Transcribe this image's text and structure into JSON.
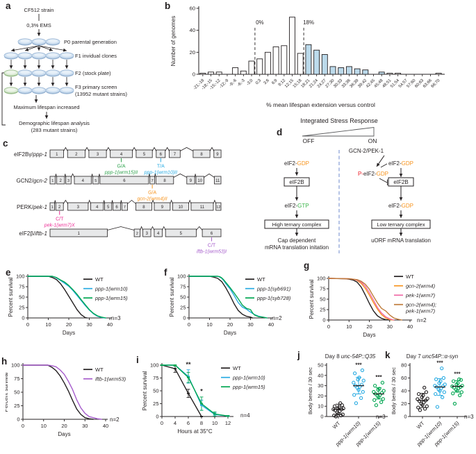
{
  "panel_labels": {
    "a": "a",
    "b": "b",
    "c": "c",
    "d": "d",
    "e": "e",
    "f": "f",
    "g": "g",
    "h": "h",
    "i": "i",
    "j": "j",
    "k": "k"
  },
  "panel_a": {
    "strain": "CF512 strain",
    "ems": "0,3% EMS",
    "p0": "P0 parental generation",
    "f1": "F1 invidual clones",
    "f2": "F2 (stock plate)",
    "f3_line1": "F3 primary screen",
    "f3_line2": "(13952 mutant strains)",
    "max": "Maximum lifespan increased",
    "demo_line1": "Demographic lifespan analysis",
    "demo_line2": "(283 mutant strains)",
    "plate_blue": "#CFE0F1",
    "plate_green": "#DCEBD5"
  },
  "panel_c": {
    "genes": [
      {
        "name_plain": "eIF2Bγ/",
        "name_italic": "ppp-1",
        "exons": [
          21,
          27,
          27,
          34,
          25,
          14,
          17,
          26,
          11
        ],
        "gaps": [
          6,
          6,
          6,
          6,
          6,
          6,
          20,
          6
        ],
        "mutations": [
          {
            "exon": 4,
            "change": "G/A",
            "allele": "ppp-1(wrm15)II",
            "color": "#2EA24D"
          },
          {
            "exon": 6,
            "change": "T/A",
            "allele": "ppp-1(wrm10)II",
            "color": "#29ABE2"
          }
        ]
      },
      {
        "name_plain": "GCN2/",
        "name_italic": "gcn-2",
        "exons": [
          8,
          12,
          8,
          26,
          9,
          74,
          7,
          27,
          12,
          12,
          10
        ],
        "gaps": [
          2,
          2,
          5,
          2,
          2,
          2,
          2,
          20,
          2,
          16
        ],
        "mutations": [
          {
            "exon": 7,
            "change": "G/A",
            "allele": "gcn-2(wrm4)II",
            "color": "#F7941E"
          }
        ]
      },
      {
        "name_plain": "PERK/",
        "name_italic": "pek-1",
        "exons": [
          7,
          12,
          32,
          20,
          11,
          12,
          9,
          25,
          25,
          25,
          35,
          8
        ],
        "gaps": [
          2,
          7,
          4,
          2,
          2,
          2,
          13,
          4,
          4,
          4,
          4
        ],
        "mutations": [
          {
            "exon": 2,
            "change": "C/T",
            "allele": "pek-1(wrm7)X",
            "color": "#EC2D95"
          }
        ]
      },
      {
        "name_plain": "eIF2β/",
        "name_italic": "iftb-1",
        "exons": [
          86,
          9,
          12,
          12,
          46,
          28
        ],
        "gaps": [
          40,
          4,
          5,
          5,
          9
        ],
        "mutations": [
          {
            "exon": 6,
            "change": "C/T",
            "allele": "iftb-1(wrm53)I",
            "color": "#A55BCB"
          }
        ]
      }
    ]
  },
  "panel_d": {
    "title": "Integrated Stress Response",
    "off": "OFF",
    "on": "ON",
    "kinases": "GCN-2/PEK-1",
    "eif2_gdp": [
      [
        "eIF2-",
        "#231F20"
      ],
      [
        "GDP",
        "#F7941E"
      ]
    ],
    "eif2_gtp": [
      [
        "eIF2-",
        "#231F20"
      ],
      [
        "GTP",
        "#3AB54A"
      ]
    ],
    "p_eif2_gdp": [
      [
        "P-",
        "#ED1C24"
      ],
      [
        "eIF2-",
        "#231F20"
      ],
      [
        "GDP",
        "#F7941E"
      ]
    ],
    "eif2b": "eIF2B",
    "high_box": "High ternary complex",
    "low_box": "Low ternary complex",
    "cap_line1": "Cap dependent",
    "cap_line2": "mRNA translation initation",
    "uorf": "uORF mRNA translation",
    "divider_color": "#7B93D1"
  },
  "chart_data": [
    {
      "id": "b",
      "type": "bar",
      "ylabel": "Number of genomes",
      "xlabel": "% mean lifespan extension versus control",
      "ylim": [
        0,
        60
      ],
      "yticks": [
        0,
        20,
        40,
        60
      ],
      "categories": [
        "-21;-18",
        "-18;-15",
        "-15;-12",
        "-12;-9",
        "-9;-6",
        "-6;-3",
        "-3;0",
        "0;3",
        "3;6",
        "6;9",
        "9;12",
        "12;15",
        "15;18",
        "18;21",
        "21;24",
        "24;27",
        "27;30",
        "30;33",
        "33;36",
        "36;39",
        "39;42",
        "42;45",
        "45;48",
        "48;51",
        "51;54",
        "54;57",
        "57;60",
        "60;63",
        "63;66",
        "66;70"
      ],
      "values": [
        1,
        2,
        2,
        0,
        6,
        3,
        12,
        14,
        20,
        25,
        26,
        52,
        19,
        27,
        22,
        18,
        7,
        6,
        7,
        5,
        4,
        0,
        2,
        1,
        1,
        0,
        0,
        0,
        0,
        1
      ],
      "highlight_range": [
        13,
        22
      ],
      "bar_fill": "#FFFFFF",
      "highlight_fill": "#BCDAEB",
      "annotations": [
        {
          "index": 7,
          "label": "0%"
        },
        {
          "index": 13,
          "label": "18%"
        }
      ]
    },
    {
      "id": "e",
      "type": "survival",
      "xlabel": "Days",
      "ylabel": "Percent survival",
      "xlim": [
        0,
        40
      ],
      "xticks": [
        0,
        10,
        20,
        30,
        40
      ],
      "yticks": [
        0,
        25,
        50,
        75,
        100
      ],
      "n_label": "n=3",
      "series": [
        {
          "name": "WT",
          "color": "#231F20",
          "x": [
            0,
            10,
            12,
            14,
            16,
            18,
            20,
            22,
            24,
            26,
            28,
            29
          ],
          "y": [
            100,
            100,
            97,
            92,
            82,
            68,
            52,
            36,
            20,
            8,
            1,
            0
          ]
        },
        {
          "name": "ppp-1(wrm10)",
          "italic": true,
          "color": "#29ABE2",
          "x": [
            0,
            12,
            14,
            16,
            18,
            20,
            22,
            24,
            26,
            28,
            30,
            32,
            34,
            36,
            38
          ],
          "y": [
            100,
            100,
            96,
            90,
            83,
            76,
            66,
            54,
            42,
            30,
            19,
            10,
            4,
            1,
            0
          ]
        },
        {
          "name": "ppp-1(wrm15)",
          "italic": true,
          "color": "#00A651",
          "x": [
            0,
            12,
            14,
            16,
            18,
            20,
            22,
            24,
            26,
            28,
            30,
            32,
            34,
            36,
            38
          ],
          "y": [
            100,
            100,
            97,
            91,
            86,
            78,
            68,
            57,
            44,
            32,
            20,
            11,
            5,
            2,
            0
          ]
        }
      ]
    },
    {
      "id": "f",
      "type": "survival",
      "xlabel": "Days",
      "ylabel": "Percent survival",
      "xlim": [
        0,
        40
      ],
      "xticks": [
        0,
        10,
        20,
        30,
        40
      ],
      "yticks": [
        0,
        25,
        50,
        75,
        100
      ],
      "n_label": "n=2",
      "series": [
        {
          "name": "WT",
          "color": "#231F20",
          "x": [
            0,
            10,
            12,
            14,
            16,
            18,
            20,
            22,
            24,
            26,
            28,
            30,
            31
          ],
          "y": [
            100,
            100,
            98,
            95,
            87,
            72,
            54,
            34,
            18,
            9,
            4,
            2,
            0
          ]
        },
        {
          "name": "ppp-1(syb691)",
          "italic": true,
          "color": "#29ABE2",
          "x": [
            0,
            14,
            15,
            16,
            17,
            18,
            20,
            22,
            24,
            26,
            28,
            30,
            32,
            34,
            36,
            38
          ],
          "y": [
            100,
            100,
            98,
            95,
            89,
            82,
            70,
            54,
            37,
            26,
            21,
            14,
            8,
            4,
            2,
            0
          ]
        },
        {
          "name": "ppp-1(syb728)",
          "italic": true,
          "color": "#00A651",
          "x": [
            0,
            14,
            15,
            16,
            17,
            18,
            20,
            22,
            24,
            26,
            28,
            30,
            31,
            32,
            34,
            36,
            38
          ],
          "y": [
            100,
            100,
            99,
            96,
            91,
            85,
            73,
            60,
            46,
            31,
            23,
            20,
            12,
            7,
            3,
            2,
            0
          ]
        }
      ]
    },
    {
      "id": "g",
      "type": "survival",
      "xlabel": "Days",
      "ylabel": "Percent survival",
      "xlim": [
        0,
        40
      ],
      "xticks": [
        0,
        10,
        20,
        30,
        40
      ],
      "yticks": [
        0,
        25,
        50,
        75,
        100
      ],
      "n_label": "n=2",
      "series": [
        {
          "name": "WT",
          "color": "#231F20",
          "x": [
            0,
            8,
            10,
            12,
            14,
            16,
            18,
            20,
            22,
            24,
            26,
            28,
            30
          ],
          "y": [
            100,
            99,
            98,
            96,
            91,
            79,
            60,
            40,
            22,
            10,
            4,
            1,
            0
          ]
        },
        {
          "name": "gcn-2(wrm4)",
          "italic": true,
          "color": "#F7941E",
          "x": [
            0,
            10,
            12,
            14,
            16,
            18,
            20,
            22,
            24,
            26,
            28,
            30,
            32
          ],
          "y": [
            100,
            99,
            98,
            95,
            88,
            76,
            60,
            42,
            26,
            13,
            5,
            1,
            0
          ]
        },
        {
          "name": "pek-1(wrm7)",
          "italic": true,
          "color": "#F06CA8",
          "x": [
            0,
            10,
            12,
            14,
            16,
            18,
            20,
            22,
            24,
            26,
            28,
            30,
            32
          ],
          "y": [
            100,
            99,
            98,
            96,
            91,
            81,
            66,
            48,
            30,
            17,
            8,
            3,
            0
          ]
        },
        {
          "name": "gcn-2(wrm4);",
          "name2": "pek-1(wrm7)",
          "italic": true,
          "color": "#BE7B3A",
          "x": [
            0,
            10,
            12,
            14,
            16,
            18,
            20,
            22,
            24,
            26,
            28,
            30,
            32,
            34,
            36
          ],
          "y": [
            100,
            99,
            98,
            97,
            93,
            86,
            74,
            57,
            41,
            28,
            22,
            12,
            5,
            2,
            0
          ]
        }
      ]
    },
    {
      "id": "h",
      "type": "survival",
      "xlabel": "Days",
      "ylabel": "Percent survival",
      "xlim": [
        0,
        40
      ],
      "xticks": [
        0,
        10,
        20,
        30,
        40
      ],
      "yticks": [
        0,
        25,
        50,
        75,
        100
      ],
      "n_label": "n=2",
      "series": [
        {
          "name": "WT",
          "color": "#231F20",
          "x": [
            0,
            12,
            14,
            16,
            18,
            20,
            22,
            24,
            26,
            28,
            30,
            32,
            34
          ],
          "y": [
            100,
            100,
            96,
            90,
            80,
            67,
            52,
            35,
            19,
            9,
            3,
            1,
            0
          ]
        },
        {
          "name": "iftb-1(wrm53)",
          "italic": true,
          "color": "#A55BCB",
          "x": [
            0,
            12,
            14,
            16,
            18,
            20,
            22,
            24,
            26,
            28,
            30,
            32,
            34,
            36,
            38
          ],
          "y": [
            100,
            100,
            99,
            97,
            91,
            83,
            70,
            55,
            36,
            21,
            11,
            5,
            3,
            1,
            0
          ]
        }
      ]
    },
    {
      "id": "i",
      "type": "survival_err",
      "xlabel": "Hours at 35°C",
      "ylabel": "Percent survival",
      "xcats": [
        0,
        4,
        6,
        8,
        10,
        12
      ],
      "yticks": [
        0,
        25,
        50,
        75,
        100
      ],
      "n_label": "n=4",
      "series": [
        {
          "name": "WT",
          "color": "#231F20",
          "y": [
            100,
            93,
            45,
            0,
            null,
            null
          ],
          "err": [
            0,
            7,
            8,
            0,
            0,
            0
          ]
        },
        {
          "name": "ppp-1(wrm10)",
          "italic": true,
          "color": "#29ABE2",
          "y": [
            100,
            100,
            78,
            22,
            4,
            1
          ],
          "err": [
            0,
            2,
            13,
            10,
            3,
            1
          ]
        },
        {
          "name": "ppp-1(wrm15)",
          "italic": true,
          "color": "#00A651",
          "y": [
            100,
            100,
            76,
            25,
            5,
            1
          ],
          "err": [
            0,
            2,
            10,
            13,
            4,
            1
          ]
        }
      ],
      "sig": [
        {
          "xi": 2,
          "yv": 97,
          "label": "**"
        },
        {
          "xi": 3,
          "yv": 45,
          "label": "*"
        }
      ]
    },
    {
      "id": "j",
      "type": "scatter",
      "title_plain": "Day 8 ",
      "title_italic": "unc-54P::Q35",
      "ylabel": "Body bends / 30 sec",
      "ylim": [
        0,
        50
      ],
      "yticks": [
        0,
        10,
        20,
        30,
        40,
        50
      ],
      "n_label": "n=3",
      "groups": [
        {
          "name": "WT",
          "color": "#231F20",
          "values": [
            0,
            1,
            1,
            2,
            3,
            4,
            5,
            6,
            7,
            7,
            8,
            8,
            9,
            10,
            11,
            13
          ],
          "mean": 7,
          "sd_low": 2,
          "sd_high": 12
        },
        {
          "name": "ppp-1(wrm10)",
          "italic": true,
          "color": "#29ABE2",
          "values": [
            13,
            18,
            21,
            24,
            26,
            28,
            29,
            30,
            31,
            33,
            35,
            36,
            38,
            42,
            45
          ],
          "mean": 30,
          "sd_low": 22,
          "sd_high": 38,
          "sig": "***"
        },
        {
          "name": "ppp-1(wrm15)",
          "italic": true,
          "color": "#00A651",
          "values": [
            11,
            14,
            16,
            17,
            19,
            20,
            21,
            22,
            23,
            24,
            25,
            26,
            27,
            30,
            33
          ],
          "mean": 22,
          "sd_low": 17,
          "sd_high": 28,
          "sig": "***"
        }
      ]
    },
    {
      "id": "k",
      "type": "scatter",
      "title_plain": "Day 7 ",
      "title_italic": "unc54P::α-syn",
      "ylabel": "Body bends / 30 sec",
      "ylim": [
        0,
        80
      ],
      "yticks": [
        0,
        20,
        40,
        60,
        80
      ],
      "n_label": "n=3",
      "groups": [
        {
          "name": "WT",
          "color": "#231F20",
          "values": [
            10,
            12,
            14,
            16,
            18,
            20,
            22,
            24,
            25,
            27,
            28,
            30,
            33,
            35,
            38,
            45
          ],
          "mean": 25,
          "sd_low": 14,
          "sd_high": 36
        },
        {
          "name": "ppp-1(wrm10)",
          "italic": true,
          "color": "#29ABE2",
          "values": [
            15,
            30,
            35,
            38,
            40,
            42,
            44,
            46,
            47,
            48,
            50,
            52,
            55,
            58,
            60,
            75
          ],
          "mean": 46,
          "sd_low": 33,
          "sd_high": 59,
          "sig": "***"
        },
        {
          "name": "ppp-1(wrm15)",
          "italic": true,
          "color": "#00A651",
          "values": [
            20,
            33,
            36,
            38,
            40,
            42,
            44,
            45,
            46,
            47,
            48,
            50,
            52,
            55,
            57,
            58
          ],
          "mean": 47,
          "sd_low": 38,
          "sd_high": 56,
          "sig": "***"
        }
      ]
    }
  ]
}
